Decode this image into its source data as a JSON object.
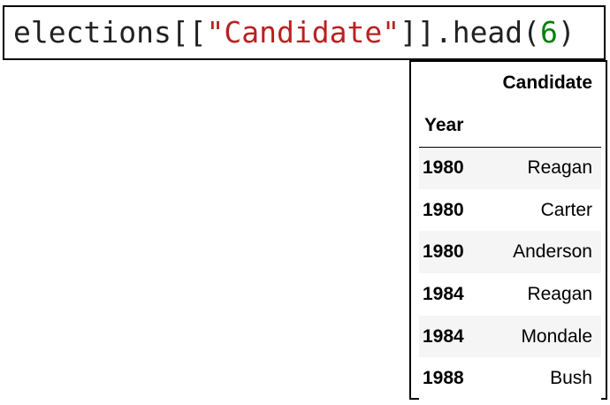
{
  "code_cell": {
    "prefix": "elections[[",
    "string_literal": "\"Candidate\"",
    "middle": "]].head(",
    "number_literal": "6",
    "suffix": ")"
  },
  "output": {
    "column_header": "Candidate",
    "index_name": "Year",
    "rows": [
      {
        "year": "1980",
        "candidate": "Reagan"
      },
      {
        "year": "1980",
        "candidate": "Carter"
      },
      {
        "year": "1980",
        "candidate": "Anderson"
      },
      {
        "year": "1984",
        "candidate": "Reagan"
      },
      {
        "year": "1984",
        "candidate": "Mondale"
      },
      {
        "year": "1988",
        "candidate": "Bush"
      }
    ]
  },
  "colors": {
    "string": "#ba2121",
    "number": "#008000",
    "stripe": "#f5f5f5"
  }
}
